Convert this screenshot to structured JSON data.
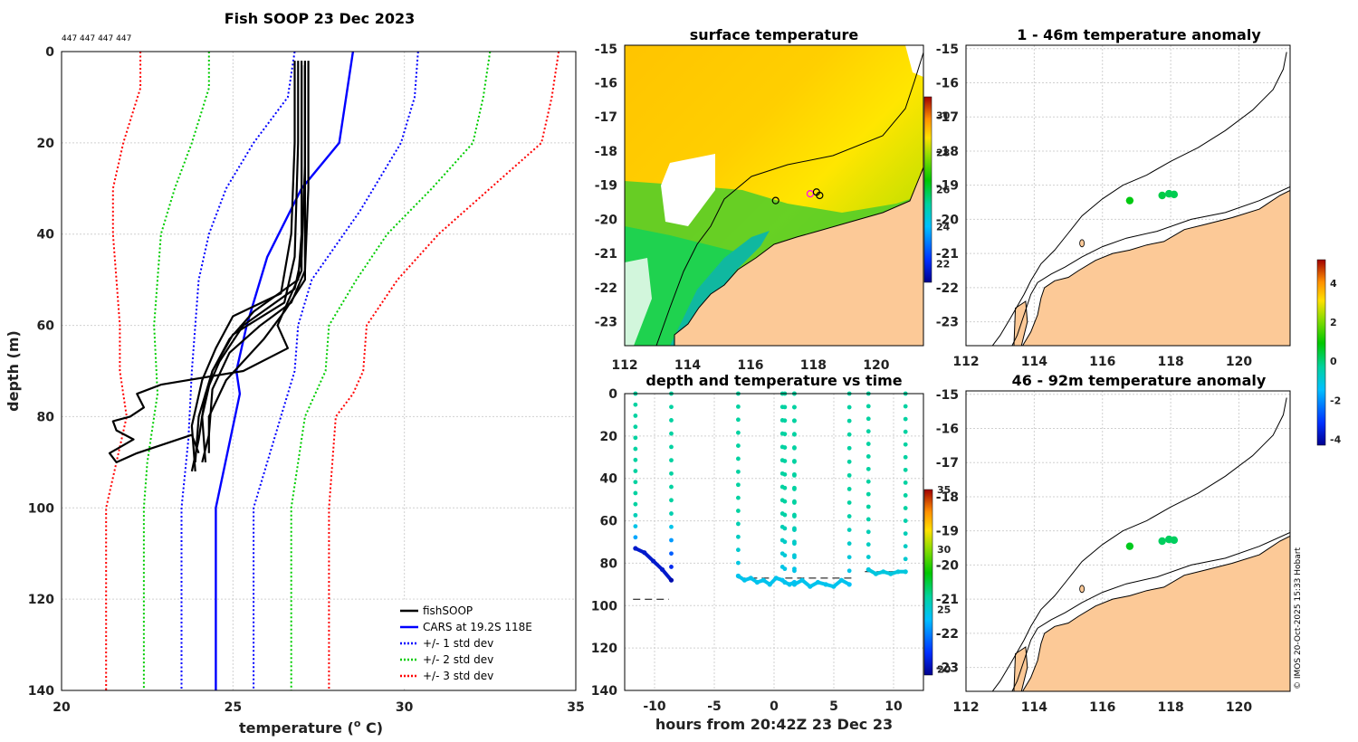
{
  "chart_data": [
    {
      "type": "line",
      "title": "Fish SOOP 23 Dec 2023",
      "annotation": "447 447 447 447",
      "xlabel": "temperature (",
      "xlabel_sup": "o",
      "xlabel_unit": " C)",
      "ylabel": "depth (m)",
      "xlim": [
        20,
        35
      ],
      "ylim": [
        0,
        140
      ],
      "xticks": [
        "20",
        "25",
        "30",
        "35"
      ],
      "yticks": [
        "0",
        "20",
        "40",
        "60",
        "80",
        "100",
        "120",
        "140"
      ],
      "legend": [
        "fishSOOP",
        "CARS at 19.2S 118E",
        "+/- 1 std dev",
        "+/- 2 std dev",
        "+/- 3 std dev"
      ],
      "series": [
        {
          "name": "CARS mean",
          "color": "#0000ff",
          "style": "solid",
          "points": [
            [
              28.5,
              0
            ],
            [
              28.1,
              20
            ],
            [
              27.0,
              30
            ],
            [
              26.0,
              45
            ],
            [
              25.4,
              60
            ],
            [
              25.1,
              70
            ],
            [
              25.2,
              75
            ],
            [
              24.5,
              100
            ],
            [
              24.5,
              140
            ]
          ]
        },
        {
          "name": "-1 std",
          "color": "#0000ff",
          "style": "dotted",
          "points": [
            [
              26.8,
              0
            ],
            [
              26.6,
              10
            ],
            [
              25.6,
              20
            ],
            [
              24.8,
              30
            ],
            [
              24.3,
              40
            ],
            [
              24.0,
              50
            ],
            [
              23.9,
              60
            ],
            [
              23.8,
              70
            ],
            [
              23.7,
              85
            ],
            [
              23.5,
              100
            ],
            [
              23.5,
              140
            ]
          ]
        },
        {
          "name": "+1 std",
          "color": "#0000ff",
          "style": "dotted",
          "points": [
            [
              30.4,
              0
            ],
            [
              30.3,
              10
            ],
            [
              29.9,
              20
            ],
            [
              28.7,
              35
            ],
            [
              27.3,
              50
            ],
            [
              26.9,
              60
            ],
            [
              26.8,
              70
            ],
            [
              26.4,
              80
            ],
            [
              25.6,
              100
            ],
            [
              25.6,
              140
            ]
          ]
        },
        {
          "name": "-2 std",
          "color": "#00cc00",
          "style": "dotted",
          "points": [
            [
              24.3,
              0
            ],
            [
              24.3,
              8
            ],
            [
              23.8,
              20
            ],
            [
              23.3,
              30
            ],
            [
              22.9,
              40
            ],
            [
              22.8,
              50
            ],
            [
              22.7,
              60
            ],
            [
              22.8,
              75
            ],
            [
              22.5,
              90
            ],
            [
              22.4,
              100
            ],
            [
              22.4,
              140
            ]
          ]
        },
        {
          "name": "+2 std",
          "color": "#00cc00",
          "style": "dotted",
          "points": [
            [
              32.5,
              0
            ],
            [
              32.3,
              10
            ],
            [
              32.0,
              20
            ],
            [
              30.8,
              30
            ],
            [
              29.5,
              40
            ],
            [
              28.6,
              50
            ],
            [
              27.8,
              60
            ],
            [
              27.7,
              70
            ],
            [
              27.4,
              75
            ],
            [
              27.1,
              80
            ],
            [
              26.7,
              100
            ],
            [
              26.7,
              140
            ]
          ]
        },
        {
          "name": "-3 std",
          "color": "#ff0000",
          "style": "dotted",
          "points": [
            [
              22.3,
              0
            ],
            [
              22.3,
              8
            ],
            [
              21.8,
              20
            ],
            [
              21.5,
              30
            ],
            [
              21.5,
              40
            ],
            [
              21.6,
              50
            ],
            [
              21.7,
              60
            ],
            [
              21.7,
              70
            ],
            [
              21.9,
              80
            ],
            [
              21.6,
              90
            ],
            [
              21.3,
              100
            ],
            [
              21.3,
              140
            ]
          ]
        },
        {
          "name": "+3 std",
          "color": "#ff0000",
          "style": "dotted",
          "points": [
            [
              34.5,
              0
            ],
            [
              34.3,
              10
            ],
            [
              34.0,
              20
            ],
            [
              32.5,
              30
            ],
            [
              31.0,
              40
            ],
            [
              29.8,
              50
            ],
            [
              28.9,
              60
            ],
            [
              28.8,
              70
            ],
            [
              28.5,
              75
            ],
            [
              28.0,
              80
            ],
            [
              27.8,
              100
            ],
            [
              27.8,
              140
            ]
          ]
        }
      ],
      "fish_profiles": [
        [
          [
            27.0,
            2
          ],
          [
            27.0,
            20
          ],
          [
            27.0,
            40
          ],
          [
            26.9,
            50
          ],
          [
            25.6,
            57
          ],
          [
            24.9,
            63
          ],
          [
            24.4,
            70
          ],
          [
            24.0,
            80
          ],
          [
            23.9,
            90
          ]
        ],
        [
          [
            27.1,
            2
          ],
          [
            27.1,
            25
          ],
          [
            27.0,
            45
          ],
          [
            26.8,
            52
          ],
          [
            25.3,
            60
          ],
          [
            24.6,
            68
          ],
          [
            24.2,
            75
          ],
          [
            24.0,
            85
          ],
          [
            23.8,
            92
          ]
        ],
        [
          [
            26.9,
            2
          ],
          [
            26.9,
            20
          ],
          [
            26.8,
            45
          ],
          [
            26.5,
            55
          ],
          [
            25.0,
            62
          ],
          [
            24.4,
            70
          ],
          [
            24.1,
            80
          ],
          [
            24.2,
            90
          ]
        ],
        [
          [
            27.2,
            2
          ],
          [
            27.2,
            30
          ],
          [
            27.1,
            48
          ],
          [
            26.7,
            55
          ],
          [
            25.8,
            60
          ],
          [
            24.9,
            66
          ],
          [
            24.4,
            74
          ],
          [
            24.3,
            84
          ],
          [
            24.1,
            90
          ]
        ],
        [
          [
            26.8,
            2
          ],
          [
            26.8,
            20
          ],
          [
            26.7,
            40
          ],
          [
            26.4,
            53
          ],
          [
            25.0,
            58
          ],
          [
            24.5,
            65
          ],
          [
            24.1,
            72
          ],
          [
            23.8,
            82
          ],
          [
            23.9,
            92
          ]
        ],
        [
          [
            27.1,
            3
          ],
          [
            27.1,
            30
          ],
          [
            27.1,
            50
          ],
          [
            26.5,
            57
          ],
          [
            25.9,
            63
          ],
          [
            24.8,
            72
          ],
          [
            24.3,
            80
          ],
          [
            24.3,
            88
          ]
        ],
        [
          [
            27.0,
            3
          ],
          [
            27.0,
            22
          ],
          [
            27.0,
            48
          ],
          [
            26.3,
            60
          ],
          [
            26.6,
            65
          ],
          [
            25.3,
            70
          ],
          [
            22.9,
            73
          ],
          [
            22.2,
            75
          ],
          [
            22.4,
            78
          ],
          [
            22.0,
            80
          ],
          [
            21.5,
            81
          ],
          [
            21.6,
            83
          ],
          [
            22.1,
            85
          ],
          [
            21.4,
            88
          ],
          [
            21.6,
            90
          ],
          [
            22.2,
            88
          ],
          [
            23.8,
            84
          ],
          [
            24.0,
            88
          ]
        ]
      ]
    },
    {
      "type": "heatmap",
      "title": "surface temperature",
      "xlim": [
        112,
        121.5
      ],
      "ylim": [
        -23.7,
        -14.9
      ],
      "xticks": [
        "112",
        "114",
        "116",
        "118",
        "120"
      ],
      "yticks": [
        "-15",
        "-16",
        "-17",
        "-18",
        "-19",
        "-20",
        "-21",
        "-22",
        "-23"
      ],
      "colorbar": {
        "range": [
          21,
          31
        ],
        "ticks": [
          "22",
          "24",
          "26",
          "28",
          "30"
        ]
      },
      "stations": [
        [
          116.8,
          -19.45
        ],
        [
          117.9,
          -19.25
        ],
        [
          118.1,
          -19.2
        ],
        [
          118.2,
          -19.3
        ]
      ]
    },
    {
      "type": "scatter",
      "title": "depth and temperature vs time",
      "xlabel": "hours from 20:42Z 23 Dec 23",
      "xlim": [
        -12.5,
        12.5
      ],
      "ylim": [
        0,
        140
      ],
      "xticks": [
        "-10",
        "-5",
        "0",
        "5",
        "10"
      ],
      "yticks": [
        "0",
        "20",
        "40",
        "60",
        "80",
        "100",
        "120",
        "140"
      ],
      "colorbar": {
        "range": [
          19.5,
          35
        ],
        "ticks": [
          "20",
          "25",
          "30",
          "35"
        ]
      },
      "bottom_lines": [
        {
          "x": [
            -11.8,
            -8.8
          ],
          "depth": 97
        },
        {
          "x": [
            -3,
            6.6
          ],
          "depth": 87
        },
        {
          "x": [
            7.6,
            11.3
          ],
          "depth": 84
        }
      ],
      "casts": [
        {
          "t0": -11.6,
          "t1": -8.6,
          "bottom": [
            73,
            75,
            79,
            83,
            88
          ],
          "tb": 20.5
        },
        {
          "t0": -3.0,
          "t1": 0.7,
          "bottom": [
            86,
            88,
            87,
            89,
            88,
            90,
            87,
            88
          ],
          "tb": 24.5
        },
        {
          "t0": 0.9,
          "t1": 1.7,
          "bottom": [
            89,
            90,
            89
          ],
          "tb": 24.5
        },
        {
          "t0": 1.7,
          "t1": 6.3,
          "bottom": [
            90,
            88,
            91,
            89,
            90,
            91,
            88,
            90
          ],
          "tb": 24.5
        },
        {
          "t0": 7.9,
          "t1": 11.0,
          "bottom": [
            83,
            85,
            84,
            85,
            84,
            84
          ],
          "tb": 24.8
        }
      ]
    },
    {
      "type": "scatter",
      "title": "1 - 46m temperature anomaly",
      "xlim": [
        112,
        121.5
      ],
      "ylim": [
        -23.7,
        -14.9
      ],
      "xticks": [
        "112",
        "114",
        "116",
        "118",
        "120"
      ],
      "yticks": [
        "-15",
        "-16",
        "-17",
        "-18",
        "-19",
        "-20",
        "-21",
        "-22",
        "-23"
      ],
      "points": [
        {
          "lon": 116.8,
          "lat": -19.45,
          "anom": 0.8
        },
        {
          "lon": 117.75,
          "lat": -19.3,
          "anom": 0.4
        },
        {
          "lon": 117.95,
          "lat": -19.25,
          "anom": 0.3
        },
        {
          "lon": 118.1,
          "lat": -19.27,
          "anom": 0.3
        }
      ]
    },
    {
      "type": "scatter",
      "title": "46 - 92m temperature anomaly",
      "xlim": [
        112,
        121.5
      ],
      "ylim": [
        -23.7,
        -14.9
      ],
      "xticks": [
        "112",
        "114",
        "116",
        "118",
        "120"
      ],
      "yticks": [
        "-15",
        "-16",
        "-17",
        "-18",
        "-19",
        "-20",
        "-21",
        "-22",
        "-23"
      ],
      "points": [
        {
          "lon": 116.8,
          "lat": -19.45,
          "anom": 0.7
        },
        {
          "lon": 117.75,
          "lat": -19.3,
          "anom": 0.2
        },
        {
          "lon": 117.95,
          "lat": -19.25,
          "anom": 0.2
        },
        {
          "lon": 118.1,
          "lat": -19.27,
          "anom": 0.2
        }
      ]
    }
  ],
  "anomaly_colorbar": {
    "range": [
      -4.3,
      5.2
    ],
    "ticks": [
      "4",
      "2",
      "0",
      "-2",
      "-4"
    ]
  },
  "colors": {
    "land": "#fcc997",
    "sea": "#ffffff"
  },
  "footer": "© IMOS 20-Oct-2025 15:33 Hobart"
}
